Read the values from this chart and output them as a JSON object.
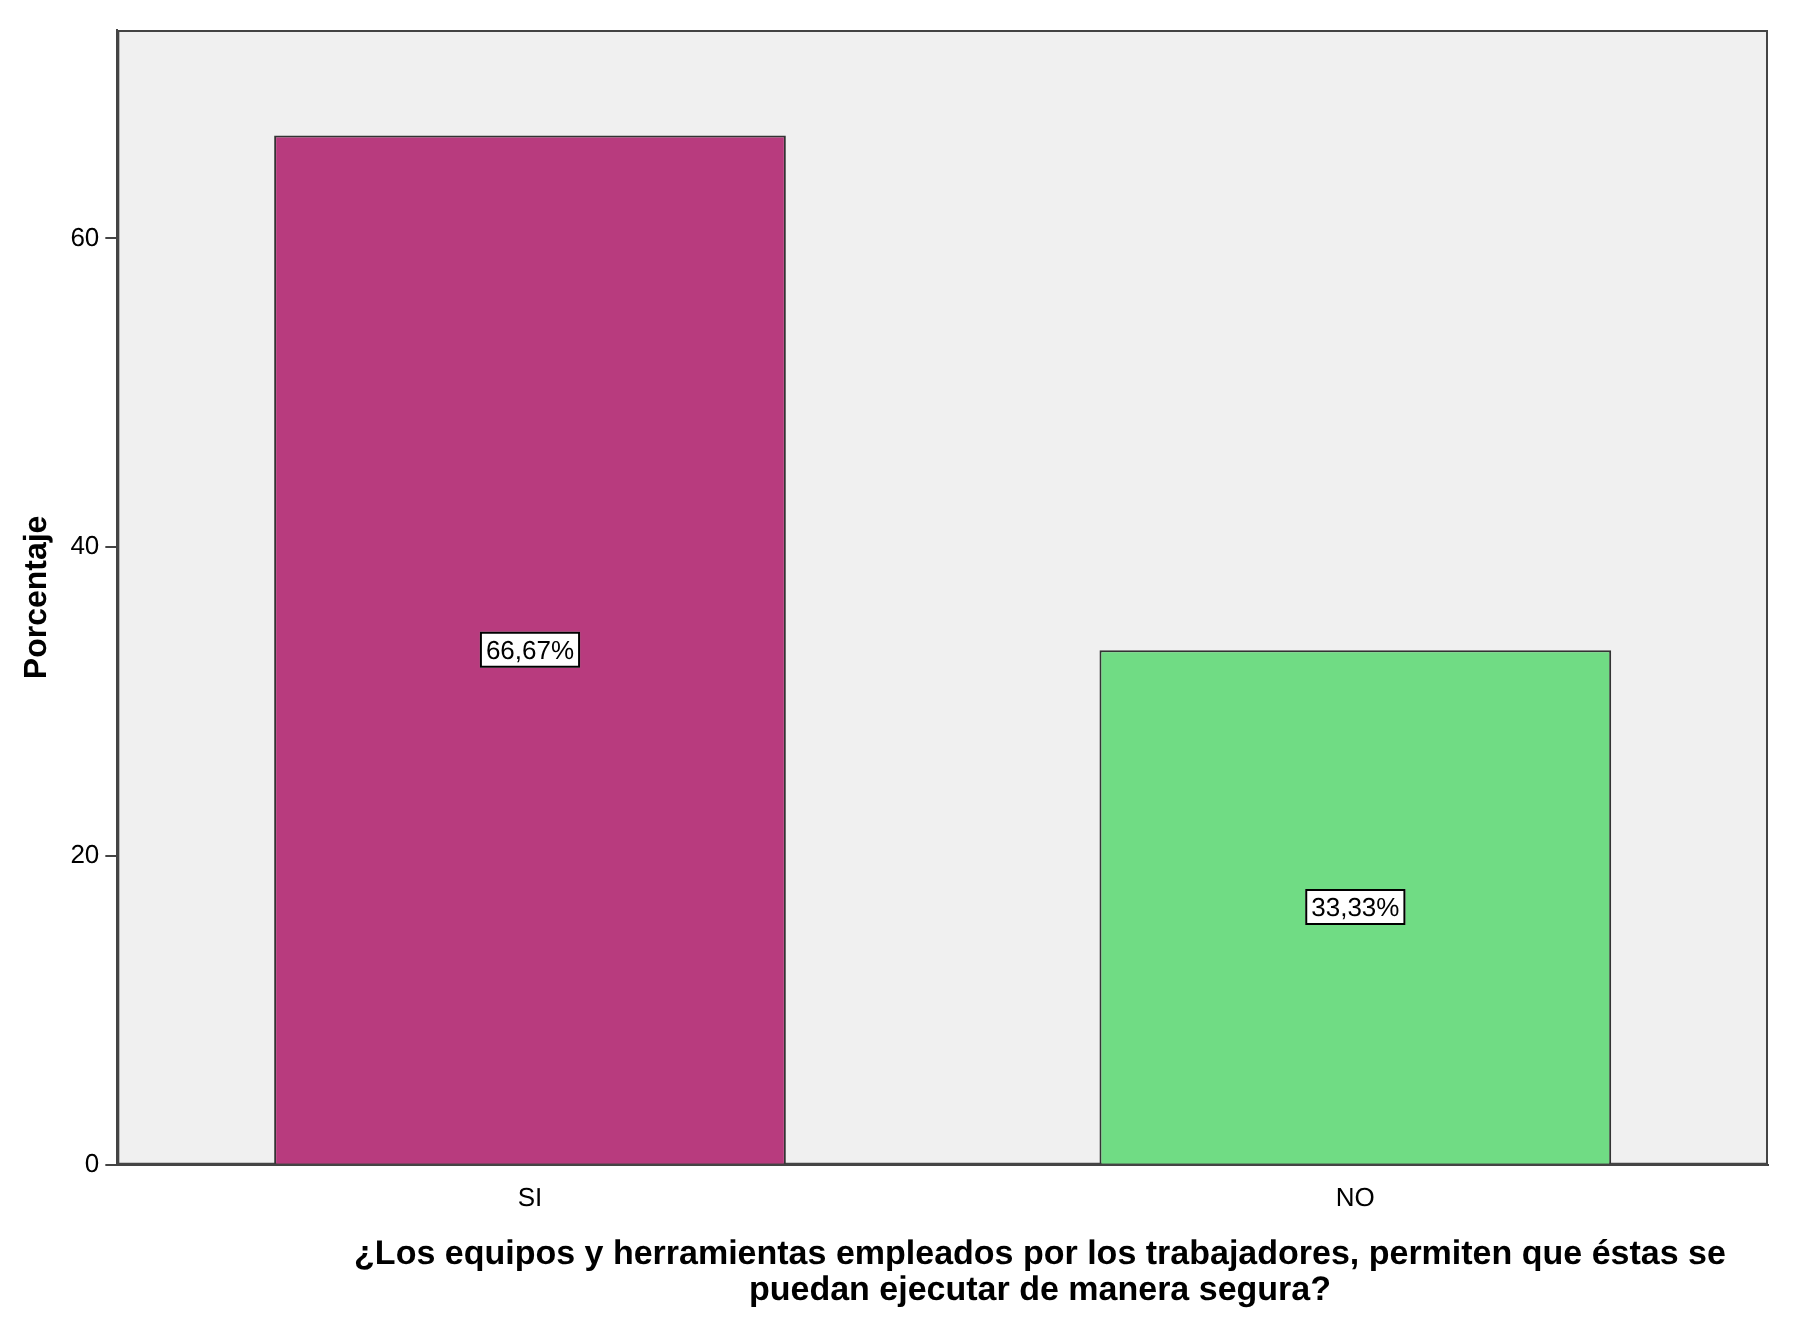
{
  "chart_data": {
    "type": "bar",
    "xlabel": "¿Los equipos y herramientas empleados por los trabajadores, permiten que éstas se puedan ejecutar de manera segura?",
    "ylabel": "Porcentaje",
    "categories": [
      "SI",
      "NO"
    ],
    "values": [
      66.67,
      33.33
    ],
    "colors": [
      "#b83b7e",
      "#70dc84"
    ],
    "value_labels": [
      "66,67%",
      "33,33%"
    ],
    "ylim": [
      0,
      73.5
    ],
    "yticks": [
      0,
      20,
      40,
      60
    ],
    "grid": false,
    "legend": false
  }
}
